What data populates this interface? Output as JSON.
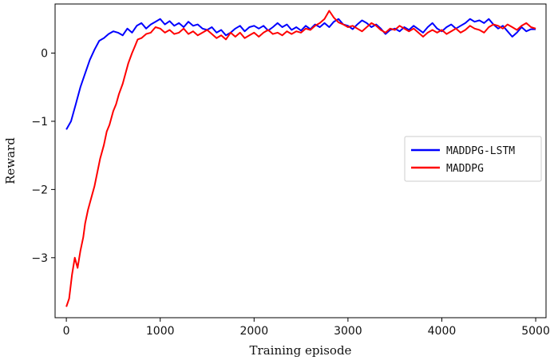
{
  "chart_data": {
    "type": "line",
    "title": "",
    "xlabel": "Training episode",
    "ylabel": "Reward",
    "xlim": [
      -120,
      5110
    ],
    "ylim": [
      -3.88,
      0.72
    ],
    "xticks": [
      0,
      1000,
      2000,
      3000,
      4000,
      5000
    ],
    "yticks": [
      -3,
      -2,
      -1,
      0
    ],
    "grid": false,
    "legend_position": "center-right",
    "series": [
      {
        "name": "MADDPG-LSTM",
        "color": "#0000ff",
        "points": [
          [
            0,
            -1.12
          ],
          [
            50,
            -1.0
          ],
          [
            100,
            -0.75
          ],
          [
            150,
            -0.5
          ],
          [
            200,
            -0.3
          ],
          [
            250,
            -0.1
          ],
          [
            300,
            0.05
          ],
          [
            350,
            0.18
          ],
          [
            400,
            0.22
          ],
          [
            450,
            0.28
          ],
          [
            500,
            0.32
          ],
          [
            550,
            0.3
          ],
          [
            600,
            0.26
          ],
          [
            650,
            0.36
          ],
          [
            700,
            0.3
          ],
          [
            750,
            0.4
          ],
          [
            800,
            0.44
          ],
          [
            850,
            0.36
          ],
          [
            900,
            0.42
          ],
          [
            950,
            0.46
          ],
          [
            1000,
            0.5
          ],
          [
            1050,
            0.42
          ],
          [
            1100,
            0.47
          ],
          [
            1150,
            0.4
          ],
          [
            1200,
            0.44
          ],
          [
            1250,
            0.38
          ],
          [
            1300,
            0.46
          ],
          [
            1350,
            0.4
          ],
          [
            1400,
            0.42
          ],
          [
            1450,
            0.36
          ],
          [
            1500,
            0.34
          ],
          [
            1550,
            0.38
          ],
          [
            1600,
            0.3
          ],
          [
            1650,
            0.34
          ],
          [
            1700,
            0.26
          ],
          [
            1750,
            0.3
          ],
          [
            1800,
            0.36
          ],
          [
            1850,
            0.4
          ],
          [
            1900,
            0.32
          ],
          [
            1950,
            0.38
          ],
          [
            2000,
            0.4
          ],
          [
            2050,
            0.36
          ],
          [
            2100,
            0.4
          ],
          [
            2150,
            0.33
          ],
          [
            2200,
            0.38
          ],
          [
            2250,
            0.44
          ],
          [
            2300,
            0.38
          ],
          [
            2350,
            0.42
          ],
          [
            2400,
            0.34
          ],
          [
            2450,
            0.38
          ],
          [
            2500,
            0.33
          ],
          [
            2550,
            0.4
          ],
          [
            2600,
            0.35
          ],
          [
            2650,
            0.42
          ],
          [
            2700,
            0.38
          ],
          [
            2750,
            0.44
          ],
          [
            2800,
            0.38
          ],
          [
            2850,
            0.46
          ],
          [
            2900,
            0.5
          ],
          [
            2950,
            0.42
          ],
          [
            3000,
            0.4
          ],
          [
            3050,
            0.35
          ],
          [
            3100,
            0.42
          ],
          [
            3150,
            0.48
          ],
          [
            3200,
            0.44
          ],
          [
            3250,
            0.38
          ],
          [
            3300,
            0.42
          ],
          [
            3350,
            0.36
          ],
          [
            3400,
            0.28
          ],
          [
            3450,
            0.34
          ],
          [
            3500,
            0.36
          ],
          [
            3550,
            0.32
          ],
          [
            3600,
            0.38
          ],
          [
            3650,
            0.34
          ],
          [
            3700,
            0.4
          ],
          [
            3750,
            0.35
          ],
          [
            3800,
            0.3
          ],
          [
            3850,
            0.38
          ],
          [
            3900,
            0.44
          ],
          [
            3950,
            0.36
          ],
          [
            4000,
            0.32
          ],
          [
            4050,
            0.38
          ],
          [
            4100,
            0.42
          ],
          [
            4150,
            0.36
          ],
          [
            4200,
            0.4
          ],
          [
            4250,
            0.44
          ],
          [
            4300,
            0.5
          ],
          [
            4350,
            0.46
          ],
          [
            4400,
            0.48
          ],
          [
            4450,
            0.44
          ],
          [
            4500,
            0.5
          ],
          [
            4550,
            0.42
          ],
          [
            4600,
            0.36
          ],
          [
            4650,
            0.4
          ],
          [
            4700,
            0.32
          ],
          [
            4750,
            0.24
          ],
          [
            4800,
            0.3
          ],
          [
            4850,
            0.38
          ],
          [
            4900,
            0.32
          ],
          [
            4950,
            0.35
          ],
          [
            5000,
            0.35
          ]
        ]
      },
      {
        "name": "MADDPG",
        "color": "#ff0000",
        "points": [
          [
            0,
            -3.72
          ],
          [
            30,
            -3.6
          ],
          [
            60,
            -3.25
          ],
          [
            90,
            -3.0
          ],
          [
            120,
            -3.15
          ],
          [
            150,
            -2.9
          ],
          [
            180,
            -2.7
          ],
          [
            200,
            -2.5
          ],
          [
            230,
            -2.3
          ],
          [
            260,
            -2.15
          ],
          [
            300,
            -1.95
          ],
          [
            330,
            -1.75
          ],
          [
            360,
            -1.55
          ],
          [
            400,
            -1.35
          ],
          [
            430,
            -1.15
          ],
          [
            460,
            -1.05
          ],
          [
            500,
            -0.85
          ],
          [
            530,
            -0.75
          ],
          [
            560,
            -0.6
          ],
          [
            600,
            -0.45
          ],
          [
            630,
            -0.3
          ],
          [
            660,
            -0.15
          ],
          [
            700,
            0.0
          ],
          [
            730,
            0.1
          ],
          [
            760,
            0.2
          ],
          [
            800,
            0.22
          ],
          [
            850,
            0.28
          ],
          [
            900,
            0.3
          ],
          [
            950,
            0.38
          ],
          [
            1000,
            0.36
          ],
          [
            1050,
            0.3
          ],
          [
            1100,
            0.34
          ],
          [
            1150,
            0.28
          ],
          [
            1200,
            0.3
          ],
          [
            1250,
            0.36
          ],
          [
            1300,
            0.28
          ],
          [
            1350,
            0.32
          ],
          [
            1400,
            0.26
          ],
          [
            1450,
            0.3
          ],
          [
            1500,
            0.34
          ],
          [
            1550,
            0.28
          ],
          [
            1600,
            0.22
          ],
          [
            1650,
            0.26
          ],
          [
            1700,
            0.2
          ],
          [
            1750,
            0.3
          ],
          [
            1800,
            0.24
          ],
          [
            1850,
            0.3
          ],
          [
            1900,
            0.22
          ],
          [
            1950,
            0.26
          ],
          [
            2000,
            0.3
          ],
          [
            2050,
            0.24
          ],
          [
            2100,
            0.3
          ],
          [
            2150,
            0.34
          ],
          [
            2200,
            0.28
          ],
          [
            2250,
            0.3
          ],
          [
            2300,
            0.26
          ],
          [
            2350,
            0.32
          ],
          [
            2400,
            0.28
          ],
          [
            2450,
            0.32
          ],
          [
            2500,
            0.3
          ],
          [
            2550,
            0.36
          ],
          [
            2600,
            0.34
          ],
          [
            2650,
            0.4
          ],
          [
            2700,
            0.44
          ],
          [
            2750,
            0.5
          ],
          [
            2800,
            0.62
          ],
          [
            2850,
            0.52
          ],
          [
            2900,
            0.45
          ],
          [
            2950,
            0.42
          ],
          [
            3000,
            0.38
          ],
          [
            3050,
            0.4
          ],
          [
            3100,
            0.36
          ],
          [
            3150,
            0.32
          ],
          [
            3200,
            0.38
          ],
          [
            3250,
            0.44
          ],
          [
            3300,
            0.4
          ],
          [
            3350,
            0.34
          ],
          [
            3400,
            0.3
          ],
          [
            3450,
            0.36
          ],
          [
            3500,
            0.34
          ],
          [
            3550,
            0.4
          ],
          [
            3600,
            0.36
          ],
          [
            3650,
            0.32
          ],
          [
            3700,
            0.36
          ],
          [
            3750,
            0.3
          ],
          [
            3800,
            0.24
          ],
          [
            3850,
            0.3
          ],
          [
            3900,
            0.34
          ],
          [
            3950,
            0.3
          ],
          [
            4000,
            0.34
          ],
          [
            4050,
            0.28
          ],
          [
            4100,
            0.32
          ],
          [
            4150,
            0.36
          ],
          [
            4200,
            0.3
          ],
          [
            4250,
            0.34
          ],
          [
            4300,
            0.4
          ],
          [
            4350,
            0.36
          ],
          [
            4400,
            0.34
          ],
          [
            4450,
            0.3
          ],
          [
            4500,
            0.38
          ],
          [
            4550,
            0.42
          ],
          [
            4600,
            0.4
          ],
          [
            4650,
            0.36
          ],
          [
            4700,
            0.42
          ],
          [
            4750,
            0.38
          ],
          [
            4800,
            0.34
          ],
          [
            4850,
            0.4
          ],
          [
            4900,
            0.44
          ],
          [
            4950,
            0.38
          ],
          [
            5000,
            0.36
          ]
        ]
      }
    ]
  }
}
